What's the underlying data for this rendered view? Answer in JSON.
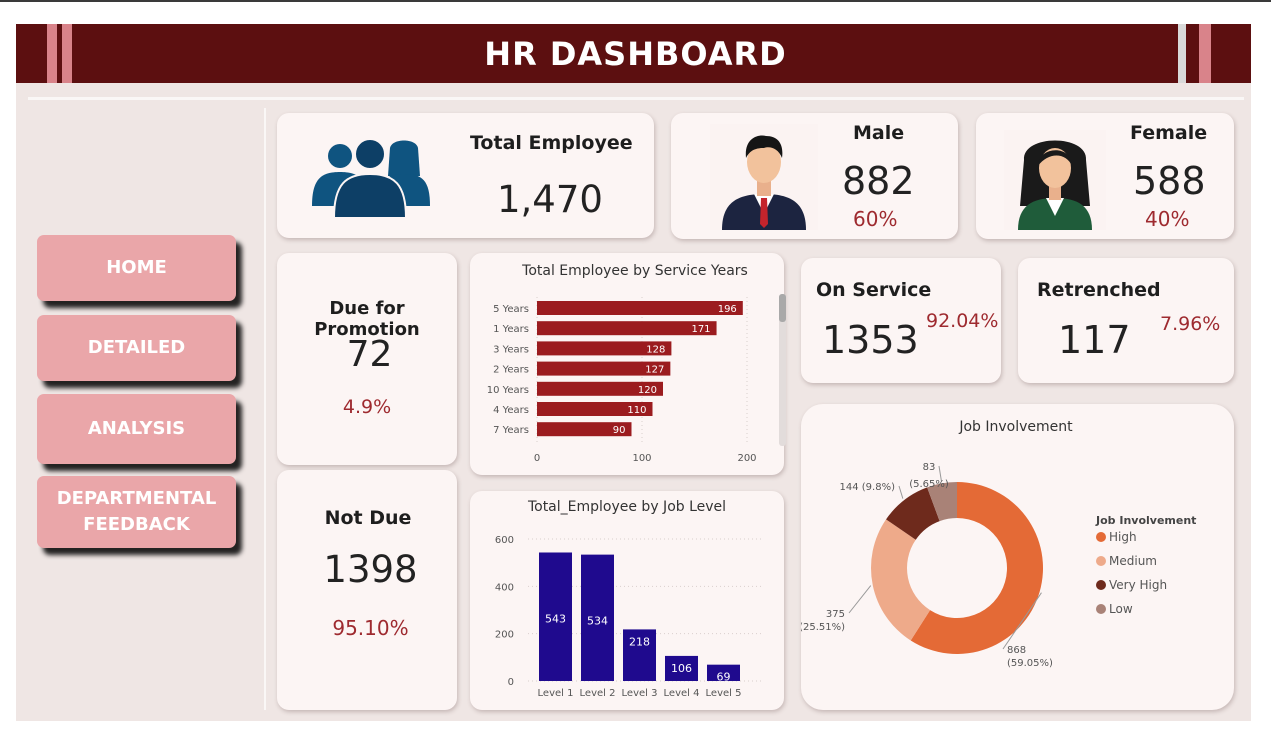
{
  "header": {
    "title": "HR DASHBOARD"
  },
  "nav": {
    "home": "HOME",
    "detailed": "DETAILED",
    "analysis": "ANALYSIS",
    "feedback_line1": "DEPARTMENTAL",
    "feedback_line2": "FEEDBACK"
  },
  "kpis": {
    "total_employee": {
      "label": "Total Employee",
      "value": "1,470"
    },
    "male": {
      "label": "Male",
      "value": "882",
      "pct": "60%"
    },
    "female": {
      "label": "Female",
      "value": "588",
      "pct": "40%"
    },
    "due_promotion": {
      "label": "Due for Promotion",
      "value": "72",
      "pct": "4.9%"
    },
    "not_due": {
      "label": "Not Due",
      "value": "1398",
      "pct": "95.10%"
    },
    "on_service": {
      "label": "On Service",
      "value": "1353",
      "pct": "92.04%"
    },
    "retrenched": {
      "label": "Retrenched",
      "value": "117",
      "pct": "7.96%"
    }
  },
  "icons": {
    "people": "people-group-icon",
    "male": "male-avatar-icon",
    "female": "female-avatar-icon"
  },
  "colors": {
    "header": "#5c0f10",
    "nav": "#eaa6a9",
    "service_bar": "#9b1c1f",
    "level_bar": "#1f0a8e"
  },
  "chart_data": [
    {
      "type": "bar",
      "orientation": "horizontal",
      "title": "Total Employee by Service Years",
      "categories": [
        "5 Years",
        "1 Years",
        "3 Years",
        "2 Years",
        "10 Years",
        "4 Years",
        "7 Years"
      ],
      "values": [
        196,
        171,
        128,
        127,
        120,
        110,
        90
      ],
      "xlim": [
        0,
        200
      ],
      "xticks": [
        "0",
        "100",
        "200"
      ]
    },
    {
      "type": "bar",
      "title": "Total_Employee by Job Level",
      "categories": [
        "Level 1",
        "Level 2",
        "Level 3",
        "Level 4",
        "Level 5"
      ],
      "values": [
        543,
        534,
        218,
        106,
        69
      ],
      "ylim": [
        0,
        600
      ],
      "yticks": [
        "0",
        "200",
        "400",
        "600"
      ]
    },
    {
      "type": "pie",
      "title": "Job Involvement",
      "legend_title": "Job Involvement",
      "categories": [
        "High",
        "Medium",
        "Very High",
        "Low"
      ],
      "values": [
        868,
        375,
        144,
        83
      ],
      "labels": [
        "868",
        "375",
        "144 (9.8%)",
        "83"
      ],
      "pct_labels": [
        "(59.05%)",
        "(25.51%)",
        "",
        "(5.65%)"
      ],
      "colors": [
        "#e46a36",
        "#eeaa8a",
        "#6e2a1c",
        "#a98277"
      ]
    }
  ]
}
